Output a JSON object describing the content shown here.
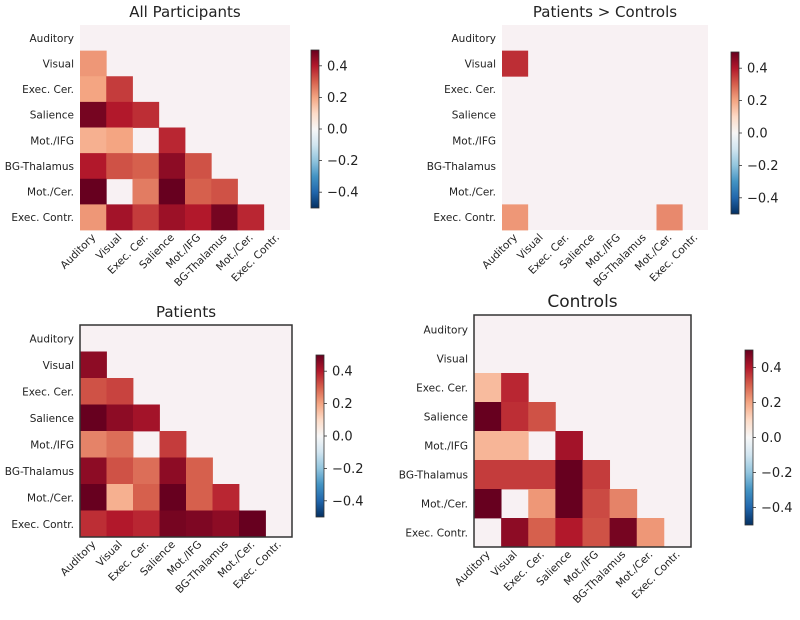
{
  "chart_data": [
    {
      "type": "heatmap",
      "title": "All Participants",
      "labels": [
        "Auditory",
        "Visual",
        "Exec. Cer.",
        "Salience",
        "Mot./IFG",
        "BG-Thalamus",
        "Mot./Cer.",
        "Exec. Contr."
      ],
      "lower_triangle_values": [
        [],
        [
          0.22
        ],
        [
          0.2,
          0.35
        ],
        [
          0.48,
          0.4,
          0.37
        ],
        [
          0.18,
          0.2,
          0.0,
          0.38
        ],
        [
          0.4,
          0.32,
          0.3,
          0.45,
          0.32
        ],
        [
          0.5,
          0.0,
          0.26,
          0.5,
          0.3,
          0.32
        ],
        [
          0.22,
          0.42,
          0.35,
          0.43,
          0.4,
          0.48,
          0.38
        ]
      ],
      "colorbar": {
        "vmin": -0.5,
        "vmax": 0.5,
        "ticks": [
          -0.4,
          -0.2,
          0.0,
          0.2,
          0.4
        ],
        "tick_labels": [
          "−0.4",
          "−0.2",
          "0.0",
          "0.2",
          "0.4"
        ]
      }
    },
    {
      "type": "heatmap",
      "title": "Patients > Controls",
      "labels": [
        "Auditory",
        "Visual",
        "Exec. Cer.",
        "Salience",
        "Mot./IFG",
        "BG-Thalamus",
        "Mot./Cer.",
        "Exec. Contr."
      ],
      "lower_triangle_values": [
        [],
        [
          0.37
        ],
        [
          0,
          0
        ],
        [
          0,
          0,
          0
        ],
        [
          0,
          0,
          0,
          0
        ],
        [
          0,
          0,
          0,
          0,
          0
        ],
        [
          0,
          0,
          0,
          0,
          0,
          0
        ],
        [
          0.22,
          0,
          0,
          0,
          0,
          0,
          0.24
        ]
      ],
      "colorbar": {
        "vmin": -0.5,
        "vmax": 0.5,
        "ticks": [
          -0.4,
          -0.2,
          0.0,
          0.2,
          0.4
        ],
        "tick_labels": [
          "−0.4",
          "−0.2",
          "0.0",
          "0.2",
          "0.4"
        ]
      }
    },
    {
      "type": "heatmap",
      "title": "Patients",
      "labels": [
        "Auditory",
        "Visual",
        "Exec. Cer.",
        "Salience",
        "Mot./IFG",
        "BG-Thalamus",
        "Mot./Cer.",
        "Exec. Contr."
      ],
      "lower_triangle_values": [
        [],
        [
          0.45
        ],
        [
          0.32,
          0.34
        ],
        [
          0.5,
          0.45,
          0.42
        ],
        [
          0.25,
          0.28,
          0.0,
          0.35
        ],
        [
          0.45,
          0.32,
          0.28,
          0.45,
          0.3
        ],
        [
          0.5,
          0.18,
          0.3,
          0.5,
          0.3,
          0.38
        ],
        [
          0.37,
          0.4,
          0.38,
          0.48,
          0.47,
          0.45,
          0.5
        ]
      ],
      "colorbar": {
        "vmin": -0.5,
        "vmax": 0.5,
        "ticks": [
          -0.4,
          -0.2,
          0.0,
          0.2,
          0.4
        ],
        "tick_labels": [
          "−0.4",
          "−0.2",
          "0.0",
          "0.2",
          "0.4"
        ]
      }
    },
    {
      "type": "heatmap",
      "title": "Controls",
      "labels": [
        "Auditory",
        "Visual",
        "Exec. Cer.",
        "Salience",
        "Mot./IFG",
        "BG-Thalamus",
        "Mot./Cer.",
        "Exec. Contr."
      ],
      "lower_triangle_values": [
        [],
        [
          0
        ],
        [
          0.16,
          0.38
        ],
        [
          0.5,
          0.37,
          0.32
        ],
        [
          0.17,
          0.17,
          0.0,
          0.42
        ],
        [
          0.35,
          0.35,
          0.35,
          0.5,
          0.35
        ],
        [
          0.5,
          0.0,
          0.22,
          0.5,
          0.33,
          0.25
        ],
        [
          0.0,
          0.45,
          0.3,
          0.4,
          0.32,
          0.48,
          0.22
        ]
      ],
      "colorbar": {
        "vmin": -0.5,
        "vmax": 0.5,
        "ticks": [
          -0.4,
          -0.2,
          0.0,
          0.2,
          0.4
        ],
        "tick_labels": [
          "−0.4",
          "−0.2",
          "0.0",
          "0.2",
          "0.4"
        ]
      }
    }
  ]
}
